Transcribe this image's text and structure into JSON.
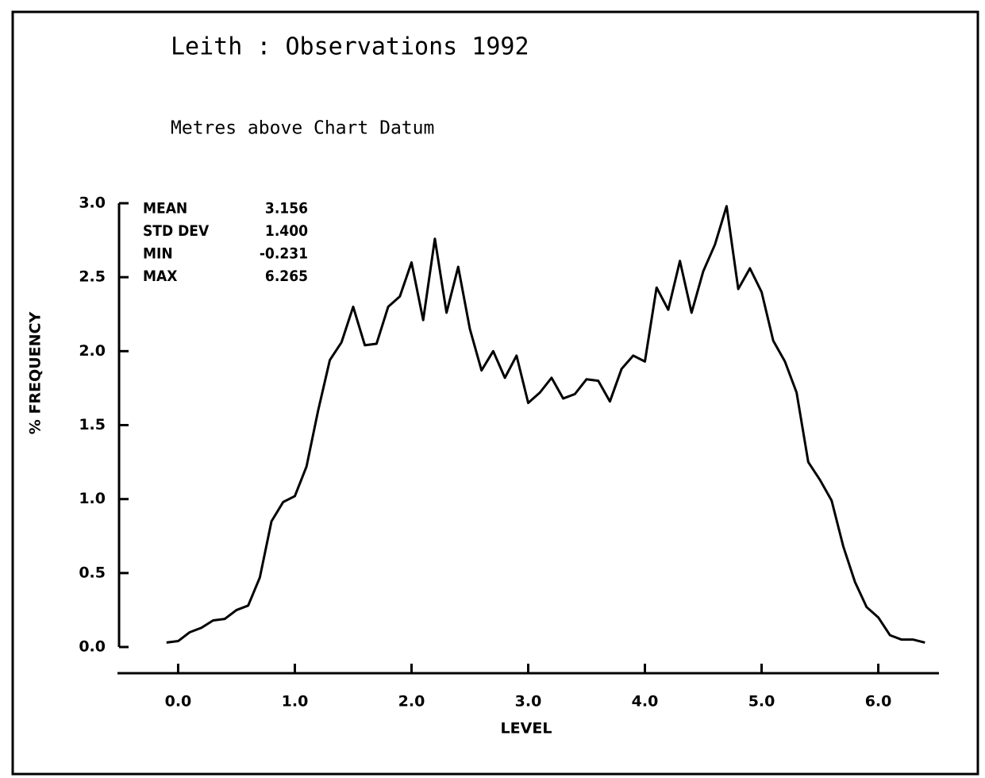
{
  "chart_data": {
    "type": "line",
    "title": "Leith : Observations 1992",
    "subtitle": "Metres above Chart Datum",
    "x_label": "LEVEL",
    "y_label": "% FREQUENCY",
    "stats": [
      {
        "label": "MEAN",
        "value": "3.156"
      },
      {
        "label": "STD DEV",
        "value": "1.400"
      },
      {
        "label": "MIN",
        "value": "-0.231"
      },
      {
        "label": "MAX",
        "value": "6.265"
      }
    ],
    "x": [
      -0.1,
      0.0,
      0.1,
      0.2,
      0.3,
      0.4,
      0.5,
      0.6,
      0.7,
      0.8,
      0.9,
      1.0,
      1.1,
      1.2,
      1.3,
      1.4,
      1.5,
      1.6,
      1.7,
      1.8,
      1.9,
      2.0,
      2.1,
      2.2,
      2.3,
      2.4,
      2.5,
      2.6,
      2.7,
      2.8,
      2.9,
      3.0,
      3.1,
      3.2,
      3.3,
      3.4,
      3.5,
      3.6,
      3.7,
      3.8,
      3.9,
      4.0,
      4.1,
      4.2,
      4.3,
      4.4,
      4.5,
      4.6,
      4.7,
      4.8,
      4.9,
      5.0,
      5.1,
      5.2,
      5.3,
      5.4,
      5.5,
      5.6,
      5.7,
      5.8,
      5.9,
      6.0,
      6.1,
      6.2,
      6.3,
      6.4
    ],
    "series": [
      {
        "color": "#000000",
        "values": [
          0.03,
          0.04,
          0.1,
          0.13,
          0.18,
          0.19,
          0.25,
          0.28,
          0.47,
          0.85,
          0.98,
          1.02,
          1.22,
          1.6,
          1.94,
          2.06,
          2.3,
          2.04,
          2.05,
          2.3,
          2.37,
          2.6,
          2.21,
          2.76,
          2.26,
          2.57,
          2.15,
          1.87,
          2.0,
          1.82,
          1.97,
          1.65,
          1.72,
          1.82,
          1.68,
          1.71,
          1.81,
          1.8,
          1.66,
          1.88,
          1.97,
          1.93,
          2.43,
          2.28,
          2.61,
          2.26,
          2.54,
          2.72,
          2.98,
          2.42,
          2.56,
          2.4,
          2.07,
          1.93,
          1.72,
          1.25,
          1.13,
          0.99,
          0.68,
          0.44,
          0.27,
          0.2,
          0.08,
          0.05,
          0.05,
          0.03
        ]
      }
    ],
    "xlim": [
      -0.52,
      6.52
    ],
    "ylim": [
      0,
      3
    ],
    "xticks": [
      {
        "value": 0,
        "label": "0.0"
      },
      {
        "value": 1,
        "label": "1.0"
      },
      {
        "value": 2,
        "label": "2.0"
      },
      {
        "value": 3,
        "label": "3.0"
      },
      {
        "value": 4,
        "label": "4.0"
      },
      {
        "value": 5,
        "label": "5.0"
      },
      {
        "value": 6,
        "label": "6.0"
      }
    ],
    "yticks": [
      {
        "value": 0,
        "label": "0.0"
      },
      {
        "value": 0.5,
        "label": "0.5"
      },
      {
        "value": 1,
        "label": "1.0"
      },
      {
        "value": 1.5,
        "label": "1.5"
      },
      {
        "value": 2,
        "label": "2.0"
      },
      {
        "value": 2.5,
        "label": "2.5"
      },
      {
        "value": 3,
        "label": "3.0"
      }
    ],
    "grid": false
  }
}
